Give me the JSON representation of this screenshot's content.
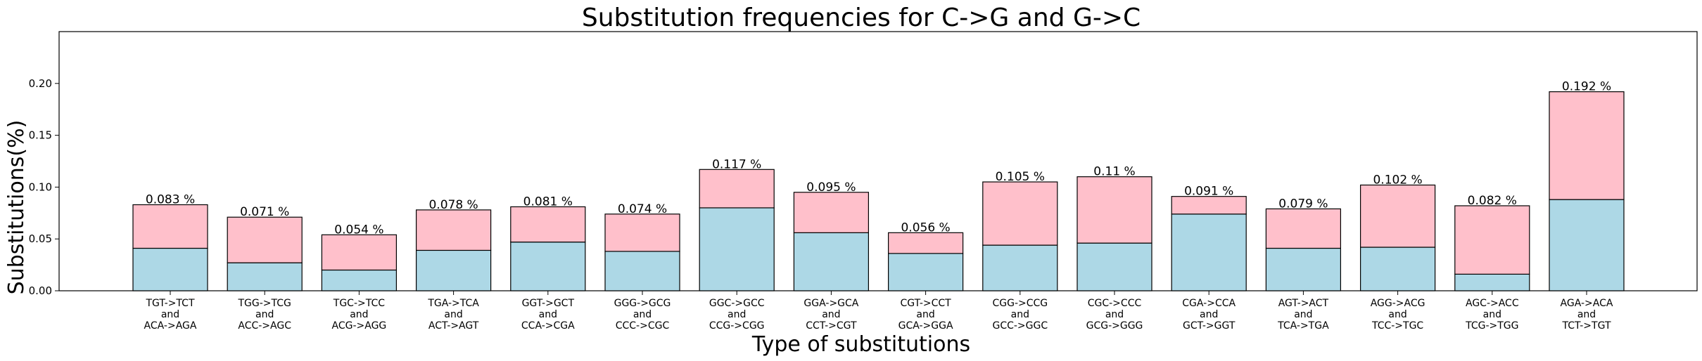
{
  "chart_data": {
    "type": "bar",
    "stacked": true,
    "title": "Substitution frequencies for C->G and G->C",
    "xlabel": "Type of substitutions",
    "ylabel": "Substitutions(%)",
    "ylim": [
      0,
      0.25
    ],
    "yticks": [
      "0.00",
      "0.05",
      "0.10",
      "0.15",
      "0.20"
    ],
    "grid": false,
    "colors": {
      "bottom": "#add8e6",
      "top": "#ffc0cb",
      "edge": "#000000"
    },
    "categories": [
      [
        "TGT->TCT",
        "and",
        "ACA->AGA"
      ],
      [
        "TGG->TCG",
        "and",
        "ACC->AGC"
      ],
      [
        "TGC->TCC",
        "and",
        "ACG->AGG"
      ],
      [
        "TGA->TCA",
        "and",
        "ACT->AGT"
      ],
      [
        "GGT->GCT",
        "and",
        "CCA->CGA"
      ],
      [
        "GGG->GCG",
        "and",
        "CCC->CGC"
      ],
      [
        "GGC->GCC",
        "and",
        "CCG->CGG"
      ],
      [
        "GGA->GCA",
        "and",
        "CCT->CGT"
      ],
      [
        "CGT->CCT",
        "and",
        "GCA->GGA"
      ],
      [
        "CGG->CCG",
        "and",
        "GCC->GGC"
      ],
      [
        "CGC->CCC",
        "and",
        "GCG->GGG"
      ],
      [
        "CGA->CCA",
        "and",
        "GCT->GGT"
      ],
      [
        "AGT->ACT",
        "and",
        "TCA->TGA"
      ],
      [
        "AGG->ACG",
        "and",
        "TCC->TGC"
      ],
      [
        "AGC->ACC",
        "and",
        "TCG->TGG"
      ],
      [
        "AGA->ACA",
        "and",
        "TCT->TGT"
      ]
    ],
    "series": [
      {
        "values": [
          0.041,
          0.027,
          0.02,
          0.039,
          0.047,
          0.038,
          0.08,
          0.056,
          0.036,
          0.044,
          0.046,
          0.074,
          0.041,
          0.042,
          0.016,
          0.088
        ]
      },
      {
        "values": [
          0.042,
          0.044,
          0.034,
          0.039,
          0.034,
          0.036,
          0.037,
          0.039,
          0.02,
          0.061,
          0.064,
          0.017,
          0.038,
          0.06,
          0.066,
          0.104
        ]
      }
    ],
    "totals": [
      0.083,
      0.071,
      0.054,
      0.078,
      0.081,
      0.074,
      0.117,
      0.095,
      0.056,
      0.105,
      0.11,
      0.091,
      0.079,
      0.102,
      0.082,
      0.192
    ],
    "total_labels": [
      "0.083 %",
      "0.071 %",
      "0.054 %",
      "0.078 %",
      "0.081 %",
      "0.074 %",
      "0.117 %",
      "0.095 %",
      "0.056 %",
      "0.105 %",
      "0.11 %",
      "0.091 %",
      "0.079 %",
      "0.102 %",
      "0.082 %",
      "0.192 %"
    ]
  }
}
